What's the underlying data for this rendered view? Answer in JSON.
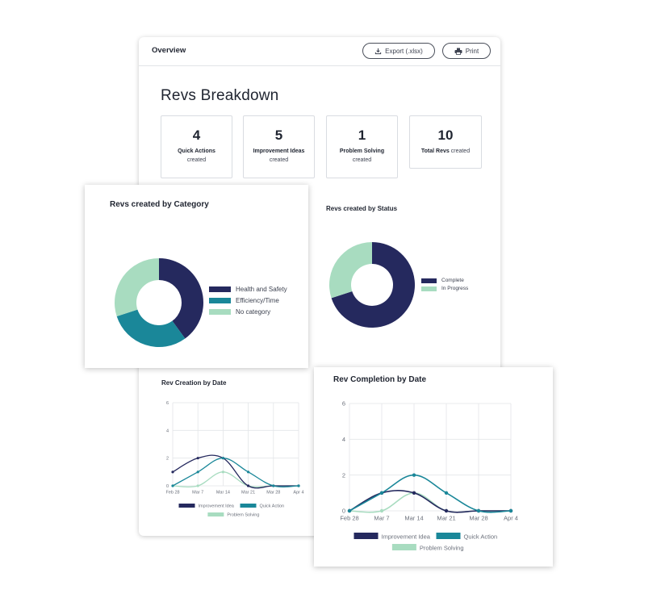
{
  "header": {
    "title": "Overview",
    "export_label": "Export (.xlsx)",
    "print_label": "Print",
    "export_icon": "download-icon",
    "print_icon": "printer-icon"
  },
  "breakdown": {
    "title": "Revs Breakdown",
    "stats": [
      {
        "value": "4",
        "label": "Quick Actions",
        "sub": "created"
      },
      {
        "value": "5",
        "label": "Improvement Ideas",
        "sub": "created"
      },
      {
        "value": "1",
        "label": "Problem Solving",
        "sub": "created"
      },
      {
        "value": "10",
        "label": "Total Revs",
        "sub": "created"
      }
    ]
  },
  "colors": {
    "navy": "#25295e",
    "teal": "#1a8799",
    "mint": "#a8dcc0",
    "grid": "#e3e5e8",
    "axis": "#6a6f7a"
  },
  "chart_data": [
    {
      "type": "pie",
      "title": "Revs created by Category",
      "donut": true,
      "labels": [
        "Health and Safety",
        "Efficiency/Time",
        "No category"
      ],
      "values": [
        4,
        3,
        3
      ],
      "legend": "right"
    },
    {
      "type": "pie",
      "title": "Revs created by Status",
      "donut": true,
      "labels": [
        "Complete",
        "In Progress"
      ],
      "values": [
        7,
        3
      ],
      "legend": "right"
    },
    {
      "type": "line",
      "title": "Rev Creation by Date",
      "categories": [
        "Feb 28",
        "Mar 7",
        "Mar 14",
        "Mar 21",
        "Mar 28",
        "Apr 4"
      ],
      "ylim": [
        0,
        6
      ],
      "yticks": [
        "0",
        "2",
        "4",
        "6"
      ],
      "grid": true,
      "legend": "bottom",
      "series": [
        {
          "name": "Improvement Idea",
          "values": [
            1,
            2,
            2,
            0,
            0,
            0
          ]
        },
        {
          "name": "Quick Action",
          "values": [
            0,
            1,
            2,
            1,
            0,
            0
          ]
        },
        {
          "name": "Problem Solving",
          "values": [
            0,
            0,
            1,
            0,
            0,
            0
          ]
        }
      ]
    },
    {
      "type": "line",
      "title": "Rev Completion by Date",
      "categories": [
        "Feb 28",
        "Mar 7",
        "Mar 14",
        "Mar 21",
        "Mar 28",
        "Apr 4"
      ],
      "ylim": [
        0,
        6
      ],
      "yticks": [
        "0",
        "2",
        "4",
        "6"
      ],
      "grid": true,
      "legend": "bottom",
      "series": [
        {
          "name": "Improvement Idea",
          "values": [
            0,
            1,
            1,
            0,
            0,
            0
          ]
        },
        {
          "name": "Quick Action",
          "values": [
            0,
            1,
            2,
            1,
            0,
            0
          ]
        },
        {
          "name": "Problem Solving",
          "values": [
            0,
            0,
            1,
            0,
            0,
            0
          ]
        }
      ]
    }
  ]
}
